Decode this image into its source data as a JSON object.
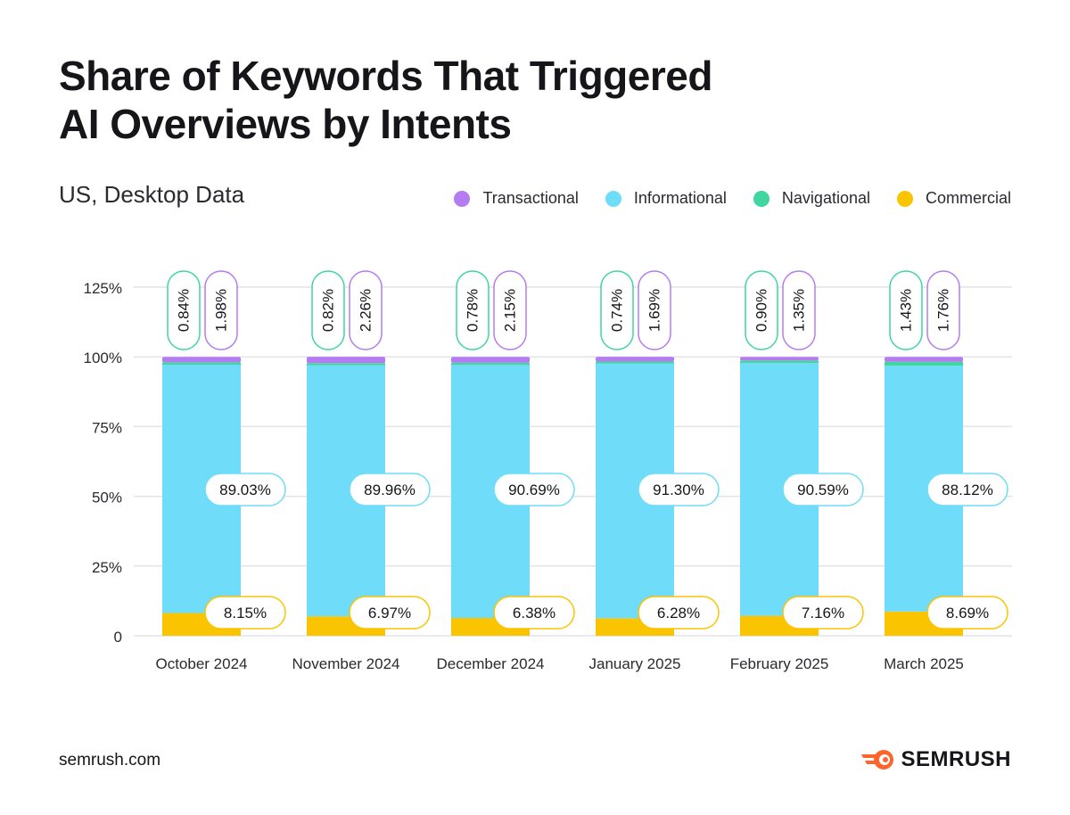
{
  "header": {
    "title_line1": "Share of Keywords That Triggered",
    "title_line2": "AI Overviews by Intents",
    "subtitle": "US, Desktop Data"
  },
  "footer": {
    "url": "semrush.com",
    "brand": "SEMRUSH"
  },
  "legend": [
    {
      "label": "Transactional",
      "color": "#b57cf2"
    },
    {
      "label": "Informational",
      "color": "#6fdcfa"
    },
    {
      "label": "Navigational",
      "color": "#3fd6a0"
    },
    {
      "label": "Commercial",
      "color": "#fbc400"
    }
  ],
  "colors": {
    "transactional": "#b57cf2",
    "informational": "#6fdcfa",
    "navigational": "#3fd6a0",
    "commercial": "#fbc400",
    "grid": "#e4e4e8",
    "brand_orange": "#ff642d"
  },
  "chart_data": {
    "type": "bar",
    "stacked": true,
    "title": "Share of Keywords That Triggered AI Overviews by Intents",
    "subtitle": "US, Desktop Data",
    "ylim": [
      0,
      125
    ],
    "yticks": [
      0,
      25,
      50,
      75,
      100,
      125
    ],
    "ytick_labels": [
      "0",
      "25%",
      "50%",
      "75%",
      "100%",
      "125%"
    ],
    "categories": [
      "October 2024",
      "November 2024",
      "December 2024",
      "January 2025",
      "February 2025",
      "March 2025"
    ],
    "series": [
      {
        "name": "Commercial",
        "key": "commercial",
        "values": [
          8.15,
          6.97,
          6.38,
          6.28,
          7.16,
          8.69
        ],
        "labels": [
          "8.15%",
          "6.97%",
          "6.38%",
          "6.28%",
          "7.16%",
          "8.69%"
        ]
      },
      {
        "name": "Informational",
        "key": "informational",
        "values": [
          89.03,
          89.96,
          90.69,
          91.3,
          90.59,
          88.12
        ],
        "labels": [
          "89.03%",
          "89.96%",
          "90.69%",
          "91.30%",
          "90.59%",
          "88.12%"
        ]
      },
      {
        "name": "Navigational",
        "key": "navigational",
        "values": [
          0.84,
          0.82,
          0.78,
          0.74,
          0.9,
          1.43
        ],
        "labels": [
          "0.84%",
          "0.82%",
          "0.78%",
          "0.74%",
          "0.90%",
          "1.43%"
        ]
      },
      {
        "name": "Transactional",
        "key": "transactional",
        "values": [
          1.98,
          2.26,
          2.15,
          1.69,
          1.35,
          1.76
        ],
        "labels": [
          "1.98%",
          "2.26%",
          "2.15%",
          "1.69%",
          "1.35%",
          "1.76%"
        ]
      }
    ],
    "legend_position": "top-right",
    "grid": true
  }
}
